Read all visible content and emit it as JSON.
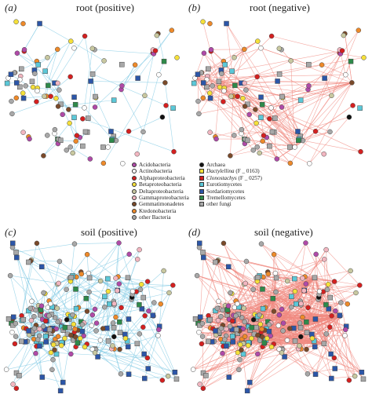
{
  "figure": {
    "panels": [
      {
        "id": "a",
        "letter": "(a)",
        "title": "root (positive)"
      },
      {
        "id": "b",
        "letter": "(b)",
        "title": "root (negative)"
      },
      {
        "id": "c",
        "letter": "(c)",
        "title": "soil (positive)"
      },
      {
        "id": "d",
        "letter": "(d)",
        "title": "soil (negative)"
      }
    ],
    "edge_colors": {
      "positive": "#7ec8e3",
      "negative": "#f08a80"
    }
  },
  "legend": {
    "col1": [
      {
        "label": "Acidobacteria",
        "shape": "circle",
        "color": "#b04aa8"
      },
      {
        "label": "Actinobacteria",
        "shape": "circle",
        "color": "#ffffff"
      },
      {
        "label": "Alphaproteobacteria",
        "shape": "circle",
        "color": "#d42020"
      },
      {
        "label": "Betaproteobacteria",
        "shape": "circle",
        "color": "#f5e03a"
      },
      {
        "label": "Deltaproteobacteria",
        "shape": "circle",
        "color": "#c8c8a0"
      },
      {
        "label": "Gammaproteobacteria",
        "shape": "circle",
        "color": "#f2b6c0"
      },
      {
        "label": "Gemmatimonadetes",
        "shape": "circle",
        "color": "#7a4a2a"
      },
      {
        "label": "Ktedonobacteria",
        "shape": "circle",
        "color": "#ee8a2a"
      },
      {
        "label": "other Bacteria",
        "shape": "circle",
        "color": "#a8a8a8"
      }
    ],
    "col2": [
      {
        "label": "Archaea",
        "shape": "circle",
        "color": "#111111"
      },
      {
        "label": "Dactylellina",
        "suffix": " (F _ 0163)",
        "shape": "square",
        "color": "#f5e03a"
      },
      {
        "label": "Clonostachys",
        "suffix": " (F _ 0257)",
        "shape": "square",
        "color": "#d42020"
      },
      {
        "label": "Eurotiomycetes",
        "shape": "square",
        "color": "#5bc8d8"
      },
      {
        "label": "Sordariomycetes",
        "shape": "square",
        "color": "#2c56a8"
      },
      {
        "label": "Tremellomycetes",
        "shape": "square",
        "color": "#2e8a4a"
      },
      {
        "label": "other fungi",
        "shape": "square",
        "color": "#a8a8a8"
      }
    ]
  }
}
